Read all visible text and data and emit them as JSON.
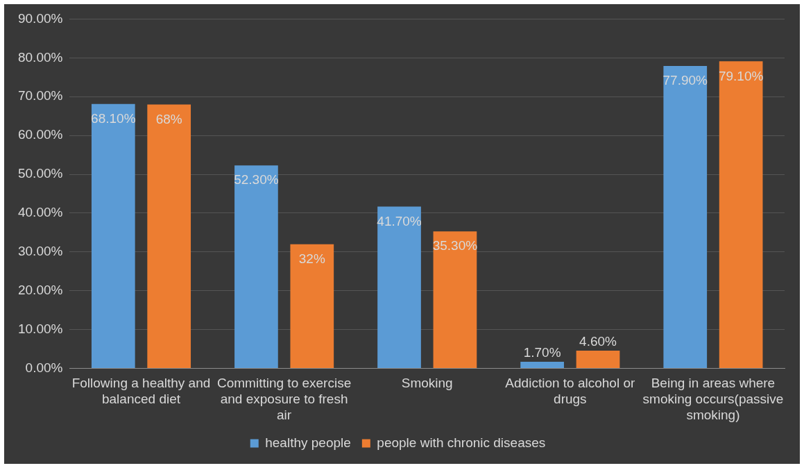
{
  "chart_data": {
    "type": "bar",
    "categories": [
      "Following a healthy and balanced diet",
      "Committing to exercise and exposure to fresh air",
      "Smoking",
      "Addiction to alcohol or drugs",
      "Being in areas where smoking occurs(passive smoking)"
    ],
    "series": [
      {
        "name": "healthy people",
        "color": "#5b9bd5",
        "values": [
          68.1,
          52.3,
          41.7,
          1.7,
          77.9
        ],
        "value_labels": [
          "68.10%",
          "52.30%",
          "41.70%",
          "1.70%",
          "77.90%"
        ]
      },
      {
        "name": "people with chronic diseases",
        "color": "#ed7d31",
        "values": [
          68,
          32,
          35.3,
          4.6,
          79.1
        ],
        "value_labels": [
          "68%",
          "32%",
          "35.30%",
          "4.60%",
          "79.10%"
        ]
      }
    ],
    "ylim": [
      0,
      90
    ],
    "yticks": [
      {
        "value": 0,
        "label": "0.00%"
      },
      {
        "value": 10,
        "label": "10.00%"
      },
      {
        "value": 20,
        "label": "20.00%"
      },
      {
        "value": 30,
        "label": "30.00%"
      },
      {
        "value": 40,
        "label": "40.00%"
      },
      {
        "value": 50,
        "label": "50.00%"
      },
      {
        "value": 60,
        "label": "60.00%"
      },
      {
        "value": 70,
        "label": "70.00%"
      },
      {
        "value": 80,
        "label": "80.00%"
      },
      {
        "value": 90,
        "label": "90.00%"
      }
    ],
    "grid": "y",
    "legend": "bottom"
  }
}
